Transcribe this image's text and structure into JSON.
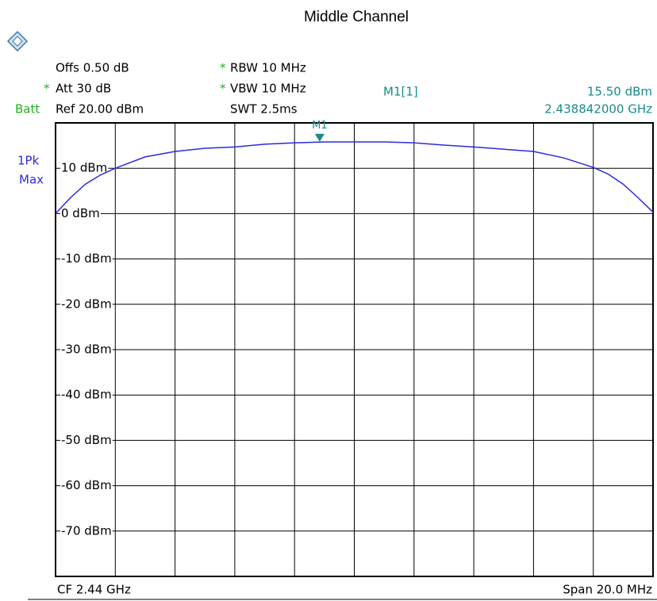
{
  "chart_data": {
    "type": "line",
    "title": "Middle Channel",
    "settings": {
      "offs": "Offs 0.50 dB",
      "att_flag": "*",
      "att": "Att 30 dB",
      "batt": "Batt",
      "ref": "Ref 20.00 dBm",
      "rbw_flag": "*",
      "rbw": "RBW 10 MHz",
      "vbw_flag": "*",
      "vbw": "VBW 10 MHz",
      "swt": "SWT 2.5ms",
      "detector": "1Pk",
      "trace_mode": "Max",
      "center": "CF 2.44 GHz",
      "span": "Span 20.0 MHz"
    },
    "xlim": [
      2.43,
      2.45
    ],
    "ylim": [
      -80,
      20
    ],
    "yticks": [
      {
        "value": 10,
        "label": "10 dBm"
      },
      {
        "value": 0,
        "label": "0 dBm"
      },
      {
        "value": -10,
        "label": "-10 dBm"
      },
      {
        "value": -20,
        "label": "-20 dBm"
      },
      {
        "value": -30,
        "label": "-30 dBm"
      },
      {
        "value": -40,
        "label": "-40 dBm"
      },
      {
        "value": -50,
        "label": "-50 dBm"
      },
      {
        "value": -60,
        "label": "-60 dBm"
      },
      {
        "value": -70,
        "label": "-70 dBm"
      }
    ],
    "grid": true,
    "series": [
      {
        "color": "#2b2bdc",
        "x": [
          2.43,
          2.4305,
          2.431,
          2.4315,
          2.432,
          2.433,
          2.434,
          2.435,
          2.436,
          2.437,
          2.438,
          2.439,
          2.44,
          2.441,
          2.442,
          2.443,
          2.444,
          2.445,
          2.446,
          2.447,
          2.448,
          2.4485,
          2.449,
          2.4495,
          2.45
        ],
        "values": [
          0,
          3.5,
          6.5,
          8.5,
          10,
          12.5,
          13.7,
          14.4,
          14.7,
          15.3,
          15.6,
          15.8,
          15.8,
          15.8,
          15.6,
          15.1,
          14.7,
          14.2,
          13.7,
          12.3,
          10.2,
          8.7,
          6.5,
          3.5,
          0.3
        ]
      }
    ],
    "marker": {
      "name": "M1",
      "readout": "M1[1]",
      "x": 2.438842,
      "y": 15.5,
      "value_label": "15.50 dBm",
      "x_label": "2.438842000 GHz",
      "color": "#1a8a8a"
    }
  }
}
